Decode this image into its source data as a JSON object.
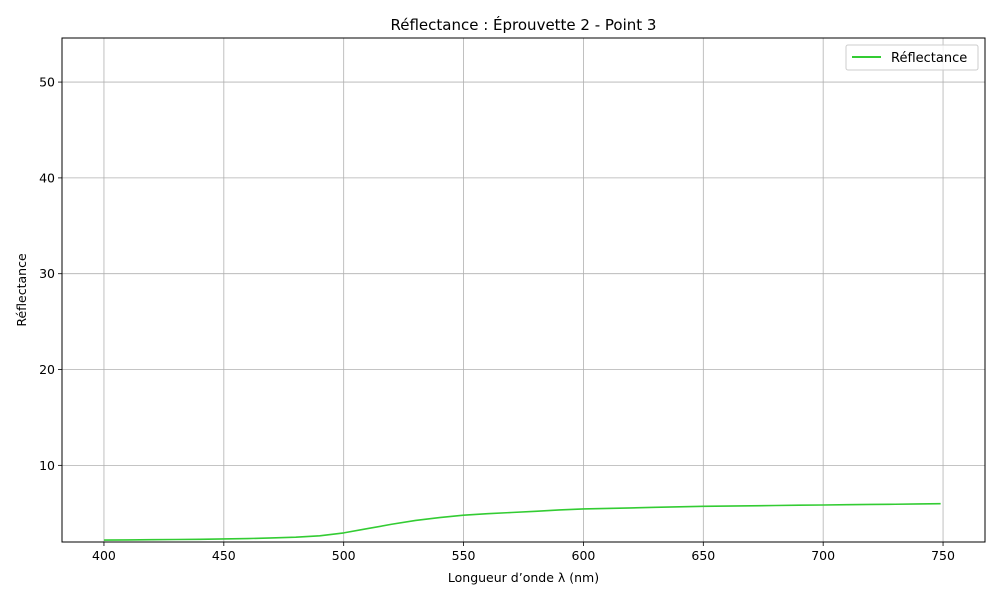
{
  "chart_data": {
    "type": "line",
    "title": "Réflectance : Éprouvette 2 - Point 3",
    "xlabel": "Longueur d’onde λ (nm)",
    "ylabel": "Réflectance",
    "xlim": [
      382.5,
      767.5
    ],
    "ylim": [
      2.0,
      54.6
    ],
    "xticks": [
      400,
      450,
      500,
      550,
      600,
      650,
      700,
      750
    ],
    "yticks": [
      10,
      20,
      30,
      40,
      50
    ],
    "grid": true,
    "legend_position": "top-right",
    "series": [
      {
        "name": "Réflectance",
        "color": "#33cc33",
        "x": [
          400,
          410,
          420,
          430,
          440,
          450,
          460,
          470,
          480,
          490,
          500,
          510,
          520,
          530,
          540,
          550,
          560,
          570,
          580,
          590,
          600,
          610,
          620,
          630,
          640,
          650,
          660,
          670,
          680,
          690,
          700,
          710,
          720,
          730,
          740,
          749
        ],
        "y": [
          2.2,
          2.22,
          2.24,
          2.26,
          2.28,
          2.32,
          2.36,
          2.42,
          2.5,
          2.65,
          2.95,
          3.4,
          3.85,
          4.25,
          4.55,
          4.8,
          4.95,
          5.08,
          5.2,
          5.35,
          5.45,
          5.5,
          5.56,
          5.62,
          5.67,
          5.72,
          5.75,
          5.78,
          5.81,
          5.84,
          5.86,
          5.89,
          5.92,
          5.94,
          5.97,
          6.0
        ]
      }
    ]
  }
}
